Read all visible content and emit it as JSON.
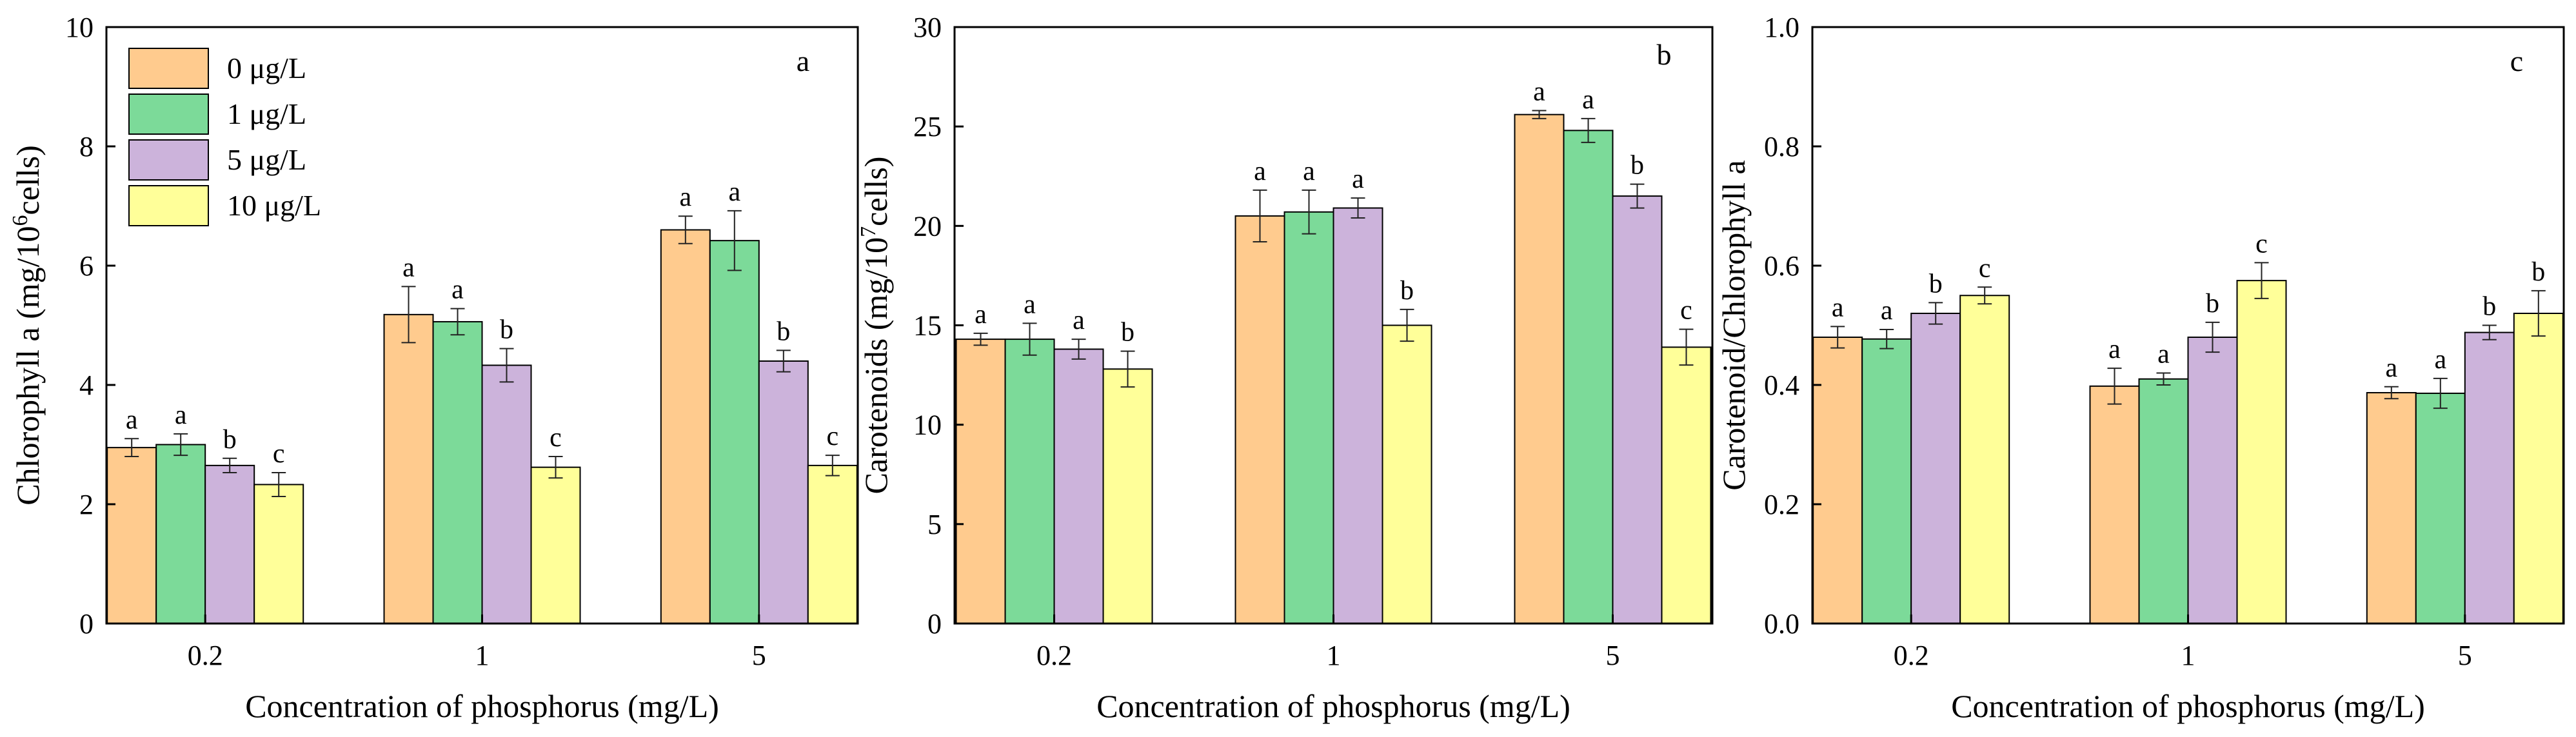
{
  "legend": {
    "entries": [
      {
        "label": "0  μg/L",
        "color": "#FFCB8E"
      },
      {
        "label": "1  μg/L",
        "color": "#7CDA99"
      },
      {
        "label": "5  μg/L",
        "color": "#CCB3DB"
      },
      {
        "label": "10 μg/L",
        "color": "#FFFF99"
      }
    ]
  },
  "chart_data": [
    {
      "type": "bar",
      "panel_label": "a",
      "title": "",
      "xlabel": "Concentration of phosphorus (mg/L)",
      "ylabel": "Chlorophyll a (mg/10",
      "ylabel_sup": "6",
      "ylabel_tail": "cells)",
      "ylim": [
        0,
        10
      ],
      "yticks": [
        "0",
        "2",
        "4",
        "6",
        "8",
        "10"
      ],
      "categories": [
        "0.2",
        "1",
        "5"
      ],
      "series": [
        {
          "name": "0  μg/L",
          "color": "#FFCB8E",
          "values": [
            2.95,
            5.18,
            6.6
          ],
          "errors": [
            0.15,
            0.47,
            0.23
          ],
          "letters": [
            "a",
            "a",
            "a"
          ]
        },
        {
          "name": "1  μg/L",
          "color": "#7CDA99",
          "values": [
            3.0,
            5.06,
            6.42
          ],
          "errors": [
            0.18,
            0.22,
            0.5
          ],
          "letters": [
            "a",
            "a",
            "a"
          ]
        },
        {
          "name": "5  μg/L",
          "color": "#CCB3DB",
          "values": [
            2.65,
            4.33,
            4.4
          ],
          "errors": [
            0.12,
            0.28,
            0.18
          ],
          "letters": [
            "b",
            "b",
            "b"
          ]
        },
        {
          "name": "10 μg/L",
          "color": "#FFFF99",
          "values": [
            2.33,
            2.62,
            2.65
          ],
          "errors": [
            0.2,
            0.18,
            0.17
          ],
          "letters": [
            "c",
            "c",
            "c"
          ]
        }
      ]
    },
    {
      "type": "bar",
      "panel_label": "b",
      "title": "",
      "xlabel": "Concentration of phosphorus (mg/L)",
      "ylabel": "Carotenoids (mg/10",
      "ylabel_sup": "7",
      "ylabel_tail": "cells)",
      "ylim": [
        0,
        30
      ],
      "yticks": [
        "0",
        "5",
        "10",
        "15",
        "20",
        "25",
        "30"
      ],
      "categories": [
        "0.2",
        "1",
        "5"
      ],
      "series": [
        {
          "name": "0  μg/L",
          "color": "#FFCB8E",
          "values": [
            14.3,
            20.5,
            25.6
          ],
          "errors": [
            0.3,
            1.3,
            0.2
          ],
          "letters": [
            "a",
            "a",
            "a"
          ]
        },
        {
          "name": "1  μg/L",
          "color": "#7CDA99",
          "values": [
            14.3,
            20.7,
            24.8
          ],
          "errors": [
            0.8,
            1.1,
            0.6
          ],
          "letters": [
            "a",
            "a",
            "a"
          ]
        },
        {
          "name": "5  μg/L",
          "color": "#CCB3DB",
          "values": [
            13.8,
            20.9,
            21.5
          ],
          "errors": [
            0.5,
            0.5,
            0.6
          ],
          "letters": [
            "a",
            "a",
            "b"
          ]
        },
        {
          "name": "10 μg/L",
          "color": "#FFFF99",
          "values": [
            12.8,
            15.0,
            13.9
          ],
          "errors": [
            0.9,
            0.8,
            0.9
          ],
          "letters": [
            "b",
            "b",
            "c"
          ]
        }
      ]
    },
    {
      "type": "bar",
      "panel_label": "c",
      "title": "",
      "xlabel": "Concentration of phosphorus (mg/L)",
      "ylabel": "Carotenoid/Chlorophyll a",
      "ylabel_sup": "",
      "ylabel_tail": "",
      "ylim": [
        0,
        1.0
      ],
      "yticks": [
        "0.0",
        "0.2",
        "0.4",
        "0.6",
        "0.8",
        "1.0"
      ],
      "categories": [
        "0.2",
        "1",
        "5"
      ],
      "series": [
        {
          "name": "0  μg/L",
          "color": "#FFCB8E",
          "values": [
            0.48,
            0.398,
            0.387
          ],
          "errors": [
            0.018,
            0.03,
            0.01
          ],
          "letters": [
            "a",
            "a",
            "a"
          ]
        },
        {
          "name": "1  μg/L",
          "color": "#7CDA99",
          "values": [
            0.477,
            0.41,
            0.386
          ],
          "errors": [
            0.016,
            0.01,
            0.025
          ],
          "letters": [
            "a",
            "a",
            "a"
          ]
        },
        {
          "name": "5  μg/L",
          "color": "#CCB3DB",
          "values": [
            0.52,
            0.48,
            0.488
          ],
          "errors": [
            0.018,
            0.025,
            0.012
          ],
          "letters": [
            "b",
            "b",
            "b"
          ]
        },
        {
          "name": "10 μg/L",
          "color": "#FFFF99",
          "values": [
            0.55,
            0.575,
            0.52
          ],
          "errors": [
            0.014,
            0.03,
            0.038
          ],
          "letters": [
            "c",
            "c",
            "b"
          ]
        }
      ]
    }
  ]
}
